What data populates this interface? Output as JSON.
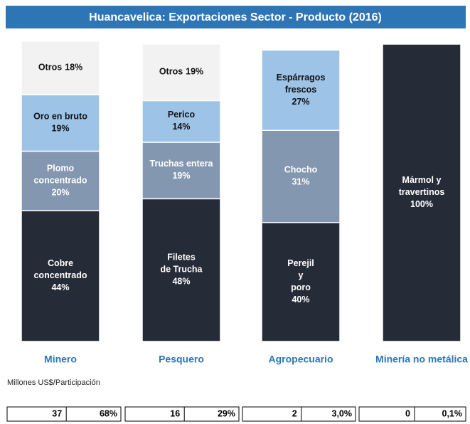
{
  "chart_data": {
    "type": "stacked-bar",
    "title": "Huancavelica: Exportaciones Sector - Producto (2016)",
    "ylim": [
      0,
      100
    ],
    "bars": [
      {
        "category": "Minero",
        "segments": [
          {
            "label": [
              "Cobre",
              "concentrado"
            ],
            "value": 44,
            "value_label": "44%",
            "color": "#262b38"
          },
          {
            "label": [
              "Plomo",
              "concentrado"
            ],
            "value": 20,
            "value_label": "20%",
            "color": "#8497b0"
          },
          {
            "label": [
              "Oro en bruto"
            ],
            "value": 19,
            "value_label": "19%",
            "color": "#9dc3e6"
          },
          {
            "label": [
              "Otros"
            ],
            "value": 18,
            "value_label": "18%",
            "color": "#f2f2f2",
            "label_inline": true
          }
        ]
      },
      {
        "category": "Pesquero",
        "segments": [
          {
            "label": [
              "Filetes",
              "de Trucha"
            ],
            "value": 48,
            "value_label": "48%",
            "color": "#262b38"
          },
          {
            "label": [
              "Truchas entera"
            ],
            "value": 19,
            "value_label": "19%",
            "color": "#8497b0"
          },
          {
            "label": [
              "Perico"
            ],
            "value": 14,
            "value_label": "14%",
            "color": "#9dc3e6"
          },
          {
            "label": [
              "Otros"
            ],
            "value": 19,
            "value_label": "19%",
            "color": "#f2f2f2",
            "label_inline": true
          }
        ]
      },
      {
        "category": "Agropecuario",
        "segments": [
          {
            "label": [
              "Perejil",
              "y",
              "poro"
            ],
            "value": 40,
            "value_label": "40%",
            "color": "#262b38"
          },
          {
            "label": [
              "Chocho"
            ],
            "value": 31,
            "value_label": "31%",
            "color": "#8497b0"
          },
          {
            "label": [
              "Espárragos",
              "frescos"
            ],
            "value": 27,
            "value_label": "27%",
            "color": "#9dc3e6"
          }
        ]
      },
      {
        "category": "Minería no metálica",
        "segments": [
          {
            "label": [
              "Mármol y",
              "travertinos"
            ],
            "value": 100,
            "value_label": "100%",
            "color": "#262b38"
          }
        ]
      }
    ],
    "note": "Millones US$/Participación",
    "totals": [
      {
        "amount": "37",
        "share": "68%"
      },
      {
        "amount": "16",
        "share": "29%"
      },
      {
        "amount": "2",
        "share": "3,0%"
      },
      {
        "amount": "0",
        "share": "0,1%"
      }
    ]
  }
}
